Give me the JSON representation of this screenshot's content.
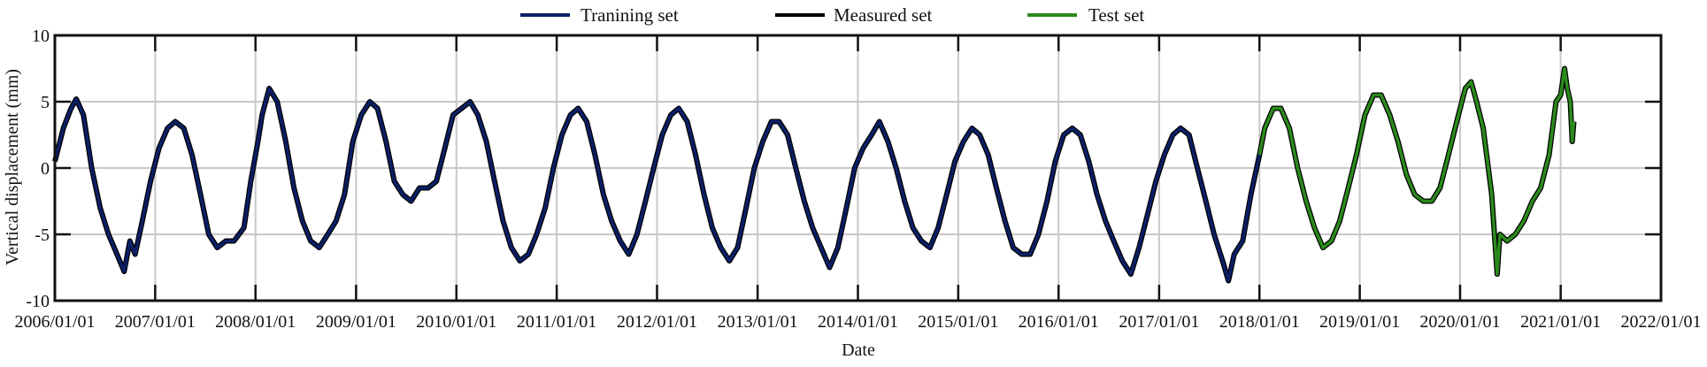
{
  "chart_data": {
    "type": "line",
    "title": "",
    "xlabel": "Date",
    "ylabel": "Vertical displacement (mm)",
    "xlim": [
      "2006/01/01",
      "2022/01/01"
    ],
    "ylim": [
      -10,
      10
    ],
    "xticks": [
      "2006/01/01",
      "2007/01/01",
      "2008/01/01",
      "2009/01/01",
      "2010/01/01",
      "2011/01/01",
      "2012/01/01",
      "2013/01/01",
      "2014/01/01",
      "2015/01/01",
      "2016/01/01",
      "2017/01/01",
      "2018/01/01",
      "2019/01/01",
      "2020/01/01",
      "2021/01/01",
      "2022/01/01"
    ],
    "yticks": [
      "10",
      "5",
      "0",
      "-5",
      "-10"
    ],
    "grid": true,
    "legend_position": "top-center",
    "colors": {
      "training": "#0b1f66",
      "measured": "#000000",
      "test": "#2b8a1c",
      "grid": "#c8c8c8"
    },
    "legend": [
      "Tranining set",
      "Measured set",
      "Test set"
    ],
    "split_date": "2018/01/01",
    "measured": [
      [
        "2006/01/01",
        0.5
      ],
      [
        "2006/02/01",
        3
      ],
      [
        "2006/03/01",
        4.5
      ],
      [
        "2006/03/20",
        5.2
      ],
      [
        "2006/04/15",
        4
      ],
      [
        "2006/05/15",
        0
      ],
      [
        "2006/06/15",
        -3
      ],
      [
        "2006/07/15",
        -5
      ],
      [
        "2006/08/15",
        -6.5
      ],
      [
        "2006/09/10",
        -7.8
      ],
      [
        "2006/10/01",
        -5.5
      ],
      [
        "2006/10/20",
        -6.5
      ],
      [
        "2006/11/15",
        -4
      ],
      [
        "2006/12/15",
        -1
      ],
      [
        "2007/01/15",
        1.5
      ],
      [
        "2007/02/15",
        3
      ],
      [
        "2007/03/15",
        3.5
      ],
      [
        "2007/04/15",
        3
      ],
      [
        "2007/05/15",
        1
      ],
      [
        "2007/06/15",
        -2
      ],
      [
        "2007/07/15",
        -5
      ],
      [
        "2007/08/15",
        -6
      ],
      [
        "2007/09/15",
        -5.5
      ],
      [
        "2007/10/15",
        -5.5
      ],
      [
        "2007/11/20",
        -4.5
      ],
      [
        "2007/12/15",
        -1
      ],
      [
        "2008/01/10",
        2
      ],
      [
        "2008/01/25",
        4
      ],
      [
        "2008/02/20",
        6
      ],
      [
        "2008/03/20",
        5
      ],
      [
        "2008/04/20",
        2
      ],
      [
        "2008/05/20",
        -1.5
      ],
      [
        "2008/06/20",
        -4
      ],
      [
        "2008/07/20",
        -5.5
      ],
      [
        "2008/08/20",
        -6
      ],
      [
        "2008/09/20",
        -5
      ],
      [
        "2008/10/20",
        -4
      ],
      [
        "2008/11/20",
        -2
      ],
      [
        "2008/12/20",
        2
      ],
      [
        "2009/01/20",
        4
      ],
      [
        "2009/02/20",
        5
      ],
      [
        "2009/03/20",
        4.5
      ],
      [
        "2009/04/20",
        2
      ],
      [
        "2009/05/20",
        -1
      ],
      [
        "2009/06/20",
        -2
      ],
      [
        "2009/07/20",
        -2.5
      ],
      [
        "2009/08/20",
        -1.5
      ],
      [
        "2009/09/20",
        -1.5
      ],
      [
        "2009/10/20",
        -1
      ],
      [
        "2009/11/20",
        1.5
      ],
      [
        "2009/12/20",
        4
      ],
      [
        "2010/01/20",
        4.5
      ],
      [
        "2010/02/20",
        5
      ],
      [
        "2010/03/20",
        4
      ],
      [
        "2010/04/20",
        2
      ],
      [
        "2010/05/20",
        -1
      ],
      [
        "2010/06/20",
        -4
      ],
      [
        "2010/07/20",
        -6
      ],
      [
        "2010/08/20",
        -7
      ],
      [
        "2010/09/20",
        -6.5
      ],
      [
        "2010/10/20",
        -5
      ],
      [
        "2010/11/20",
        -3
      ],
      [
        "2010/12/20",
        0
      ],
      [
        "2011/01/20",
        2.5
      ],
      [
        "2011/02/20",
        4
      ],
      [
        "2011/03/20",
        4.5
      ],
      [
        "2011/04/20",
        3.5
      ],
      [
        "2011/05/20",
        1
      ],
      [
        "2011/06/20",
        -2
      ],
      [
        "2011/07/20",
        -4
      ],
      [
        "2011/08/20",
        -5.5
      ],
      [
        "2011/09/20",
        -6.5
      ],
      [
        "2011/10/20",
        -5
      ],
      [
        "2011/11/20",
        -2.5
      ],
      [
        "2011/12/20",
        0
      ],
      [
        "2012/01/20",
        2.5
      ],
      [
        "2012/02/20",
        4
      ],
      [
        "2012/03/20",
        4.5
      ],
      [
        "2012/04/20",
        3.5
      ],
      [
        "2012/05/20",
        1
      ],
      [
        "2012/06/20",
        -2
      ],
      [
        "2012/07/20",
        -4.5
      ],
      [
        "2012/08/20",
        -6
      ],
      [
        "2012/09/20",
        -7
      ],
      [
        "2012/10/20",
        -6
      ],
      [
        "2012/11/20",
        -3
      ],
      [
        "2012/12/20",
        0
      ],
      [
        "2013/01/20",
        2
      ],
      [
        "2013/02/20",
        3.5
      ],
      [
        "2013/03/20",
        3.5
      ],
      [
        "2013/04/20",
        2.5
      ],
      [
        "2013/05/20",
        0
      ],
      [
        "2013/06/20",
        -2.5
      ],
      [
        "2013/07/20",
        -4.5
      ],
      [
        "2013/08/20",
        -6
      ],
      [
        "2013/09/20",
        -7.5
      ],
      [
        "2013/10/20",
        -6
      ],
      [
        "2013/11/20",
        -3
      ],
      [
        "2013/12/20",
        0
      ],
      [
        "2014/01/20",
        1.5
      ],
      [
        "2014/02/20",
        2.5
      ],
      [
        "2014/03/20",
        3.5
      ],
      [
        "2014/04/20",
        2
      ],
      [
        "2014/05/20",
        0
      ],
      [
        "2014/06/20",
        -2.5
      ],
      [
        "2014/07/20",
        -4.5
      ],
      [
        "2014/08/20",
        -5.5
      ],
      [
        "2014/09/20",
        -6
      ],
      [
        "2014/10/20",
        -4.5
      ],
      [
        "2014/11/20",
        -2
      ],
      [
        "2014/12/20",
        0.5
      ],
      [
        "2015/01/20",
        2
      ],
      [
        "2015/02/20",
        3
      ],
      [
        "2015/03/20",
        2.5
      ],
      [
        "2015/04/20",
        1
      ],
      [
        "2015/05/20",
        -1.5
      ],
      [
        "2015/06/20",
        -4
      ],
      [
        "2015/07/20",
        -6
      ],
      [
        "2015/08/20",
        -6.5
      ],
      [
        "2015/09/20",
        -6.5
      ],
      [
        "2015/10/20",
        -5
      ],
      [
        "2015/11/20",
        -2.5
      ],
      [
        "2015/12/20",
        0.5
      ],
      [
        "2016/01/20",
        2.5
      ],
      [
        "2016/02/20",
        3
      ],
      [
        "2016/03/20",
        2.5
      ],
      [
        "2016/04/20",
        0.5
      ],
      [
        "2016/05/20",
        -2
      ],
      [
        "2016/06/20",
        -4
      ],
      [
        "2016/07/20",
        -5.5
      ],
      [
        "2016/08/20",
        -7
      ],
      [
        "2016/09/20",
        -8
      ],
      [
        "2016/10/20",
        -6
      ],
      [
        "2016/11/20",
        -3.5
      ],
      [
        "2016/12/20",
        -1
      ],
      [
        "2017/01/20",
        1
      ],
      [
        "2017/02/20",
        2.5
      ],
      [
        "2017/03/20",
        3
      ],
      [
        "2017/04/20",
        2.5
      ],
      [
        "2017/05/20",
        0
      ],
      [
        "2017/06/20",
        -2.5
      ],
      [
        "2017/07/20",
        -5
      ],
      [
        "2017/08/20",
        -7
      ],
      [
        "2017/09/10",
        -8.5
      ],
      [
        "2017/10/01",
        -6.5
      ],
      [
        "2017/11/01",
        -5.5
      ],
      [
        "2017/12/01",
        -2
      ],
      [
        "2018/01/01",
        1
      ],
      [
        "2018/01/20",
        3
      ],
      [
        "2018/02/20",
        4.5
      ],
      [
        "2018/03/20",
        4.5
      ],
      [
        "2018/04/20",
        3
      ],
      [
        "2018/05/20",
        0
      ],
      [
        "2018/06/20",
        -2.5
      ],
      [
        "2018/07/20",
        -4.5
      ],
      [
        "2018/08/20",
        -6
      ],
      [
        "2018/09/20",
        -5.5
      ],
      [
        "2018/10/20",
        -4
      ],
      [
        "2018/11/20",
        -1.5
      ],
      [
        "2018/12/20",
        1
      ],
      [
        "2019/01/20",
        4
      ],
      [
        "2019/02/20",
        5.5
      ],
      [
        "2019/03/20",
        5.5
      ],
      [
        "2019/04/20",
        4
      ],
      [
        "2019/05/20",
        2
      ],
      [
        "2019/06/20",
        -0.5
      ],
      [
        "2019/07/20",
        -2
      ],
      [
        "2019/08/20",
        -2.5
      ],
      [
        "2019/09/20",
        -2.5
      ],
      [
        "2019/10/20",
        -1.5
      ],
      [
        "2019/11/20",
        1
      ],
      [
        "2019/12/20",
        3.5
      ],
      [
        "2020/01/20",
        6
      ],
      [
        "2020/02/10",
        6.5
      ],
      [
        "2020/03/01",
        5
      ],
      [
        "2020/03/25",
        3
      ],
      [
        "2020/04/25",
        -2
      ],
      [
        "2020/05/15",
        -8
      ],
      [
        "2020/05/25",
        -5
      ],
      [
        "2020/06/20",
        -5.5
      ],
      [
        "2020/07/20",
        -5
      ],
      [
        "2020/08/20",
        -4
      ],
      [
        "2020/09/20",
        -2.5
      ],
      [
        "2020/10/20",
        -1.5
      ],
      [
        "2020/11/20",
        1
      ],
      [
        "2020/12/15",
        5
      ],
      [
        "2021/01/01",
        5.5
      ],
      [
        "2021/01/15",
        7.5
      ],
      [
        "2021/01/25",
        6
      ],
      [
        "2021/02/05",
        5
      ],
      [
        "2021/02/12",
        2
      ],
      [
        "2021/02/18",
        3.5
      ]
    ]
  }
}
